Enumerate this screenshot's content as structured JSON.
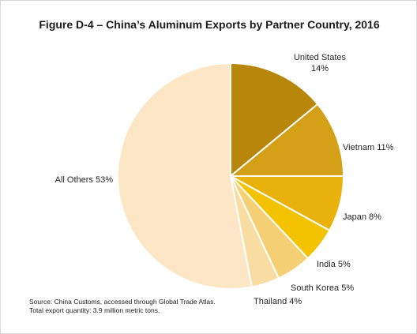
{
  "figure": {
    "source_line": "Source: China Customs, accessed through Global Trade Atlas.",
    "note_line": "Total export quantity: 3.9 million metric tons."
  },
  "chart_data": {
    "type": "pie",
    "title": "Figure D-4 – China’s Aluminum Exports by Partner Country, 2016",
    "unit": "%",
    "slices": [
      {
        "name": "United States",
        "value": 14,
        "label_line1": "United States",
        "label_line2": "14%",
        "color": "#b8860b"
      },
      {
        "name": "Vietnam",
        "value": 11,
        "label_line1": "Vietnam 11%",
        "label_line2": "",
        "color": "#d4a017"
      },
      {
        "name": "Japan",
        "value": 8,
        "label_line1": "Japan 8%",
        "label_line2": "",
        "color": "#e8b10c"
      },
      {
        "name": "India",
        "value": 5,
        "label_line1": "India 5%",
        "label_line2": "",
        "color": "#f3c200"
      },
      {
        "name": "South Korea",
        "value": 5,
        "label_line1": "South Korea 5%",
        "label_line2": "",
        "color": "#f5cf73"
      },
      {
        "name": "Thailand",
        "value": 4,
        "label_line1": "Thailand 4%",
        "label_line2": "",
        "color": "#f9dca1"
      },
      {
        "name": "All Others",
        "value": 53,
        "label_line1": "All Others 53%",
        "label_line2": "",
        "color": "#fce6c6"
      }
    ]
  }
}
